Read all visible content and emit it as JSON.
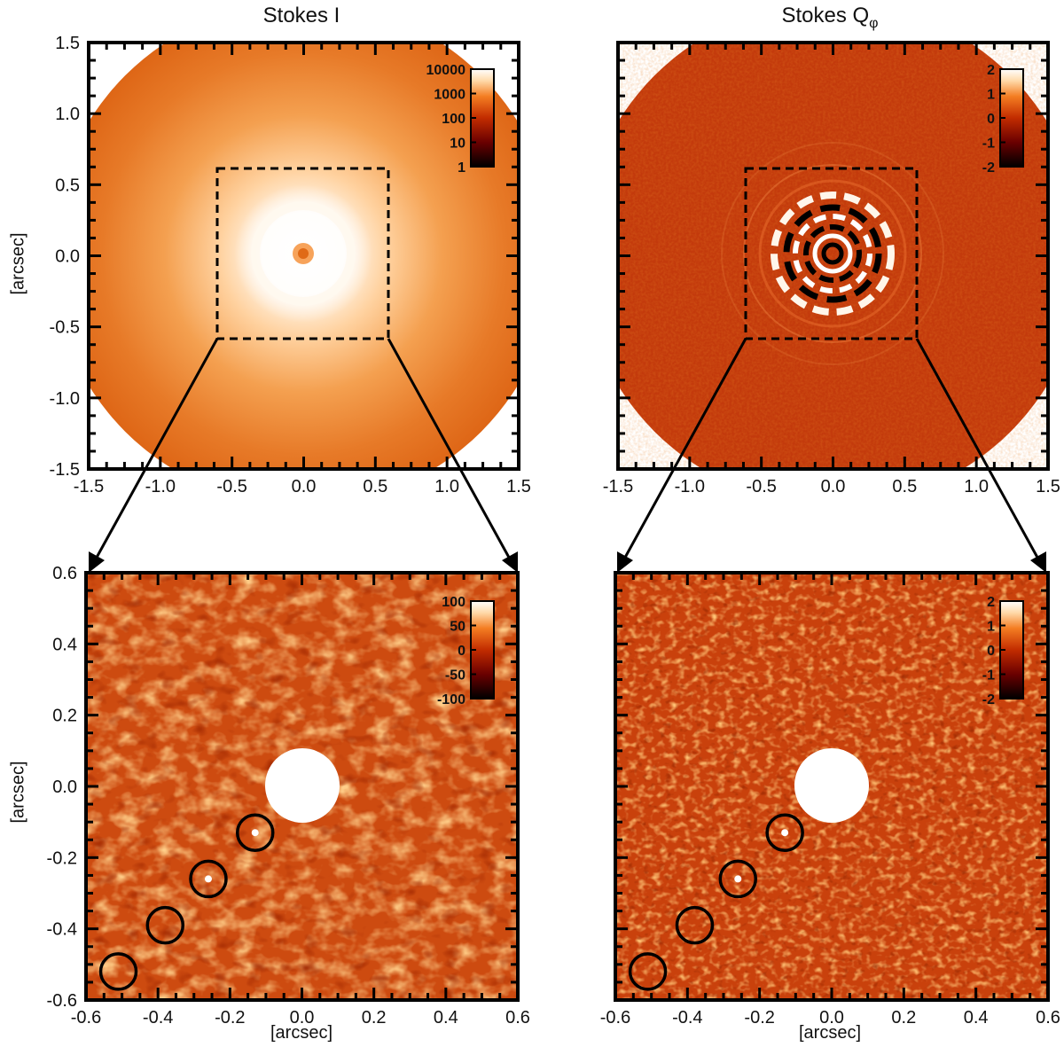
{
  "figure": {
    "panels": [
      {
        "id": "stokes-i-full",
        "title": "Stokes I",
        "ylabel": "[arcsec]",
        "xlabel": "",
        "xticks": [
          "-1.5",
          "-1.0",
          "-0.5",
          "0.0",
          "0.5",
          "1.0",
          "1.5"
        ],
        "yticks": [
          "1.5",
          "1.0",
          "0.5",
          "0.0",
          "-0.5",
          "-1.0",
          "-1.5"
        ],
        "colorbar_ticks": [
          "10000",
          "1000",
          "100",
          "10",
          "1"
        ],
        "colormap": [
          "#000000",
          "#5a0000",
          "#b52a00",
          "#f07a20",
          "#ffd9a8",
          "#ffffff"
        ]
      },
      {
        "id": "stokes-q-full",
        "title": "Stokes Q",
        "title_sub": "φ",
        "ylabel": "",
        "xlabel": "",
        "xticks": [
          "-1.5",
          "-1.0",
          "-0.5",
          "0.0",
          "0.5",
          "1.0",
          "1.5"
        ],
        "yticks": [],
        "colorbar_ticks": [
          "2",
          "1",
          "0",
          "-1",
          "-2"
        ],
        "colormap": [
          "#000000",
          "#5a0000",
          "#b52a00",
          "#f07a20",
          "#ffd9a8",
          "#ffffff"
        ]
      },
      {
        "id": "stokes-i-zoom",
        "title": "",
        "ylabel": "[arcsec]",
        "xlabel": "[arcsec]",
        "xticks": [
          "-0.6",
          "-0.4",
          "-0.2",
          "0.0",
          "0.2",
          "0.4",
          "0.6"
        ],
        "yticks": [
          "0.6",
          "0.4",
          "0.2",
          "0.0",
          "-0.2",
          "-0.4",
          "-0.6"
        ],
        "colorbar_ticks": [
          "100",
          "50",
          "0",
          "-50",
          "-100"
        ],
        "colormap": [
          "#000000",
          "#5a0000",
          "#b52a00",
          "#f07a20",
          "#ffd9a8",
          "#ffffff"
        ]
      },
      {
        "id": "stokes-q-zoom",
        "title": "",
        "ylabel": "",
        "xlabel": "[arcsec]",
        "xticks": [
          "-0.6",
          "-0.4",
          "-0.2",
          "0.0",
          "0.2",
          "0.4",
          "0.6"
        ],
        "yticks": [],
        "colorbar_ticks": [
          "2",
          "1",
          "0",
          "-1",
          "-2"
        ],
        "colormap": [
          "#000000",
          "#5a0000",
          "#b52a00",
          "#f07a20",
          "#ffd9a8",
          "#ffffff"
        ]
      }
    ],
    "zoom_region_arcsec": [
      -0.6,
      0.6
    ],
    "circled_sources_arcsec": [
      [
        -0.13,
        -0.13
      ],
      [
        -0.26,
        -0.26
      ],
      [
        -0.38,
        -0.39
      ],
      [
        -0.51,
        -0.52
      ]
    ]
  }
}
